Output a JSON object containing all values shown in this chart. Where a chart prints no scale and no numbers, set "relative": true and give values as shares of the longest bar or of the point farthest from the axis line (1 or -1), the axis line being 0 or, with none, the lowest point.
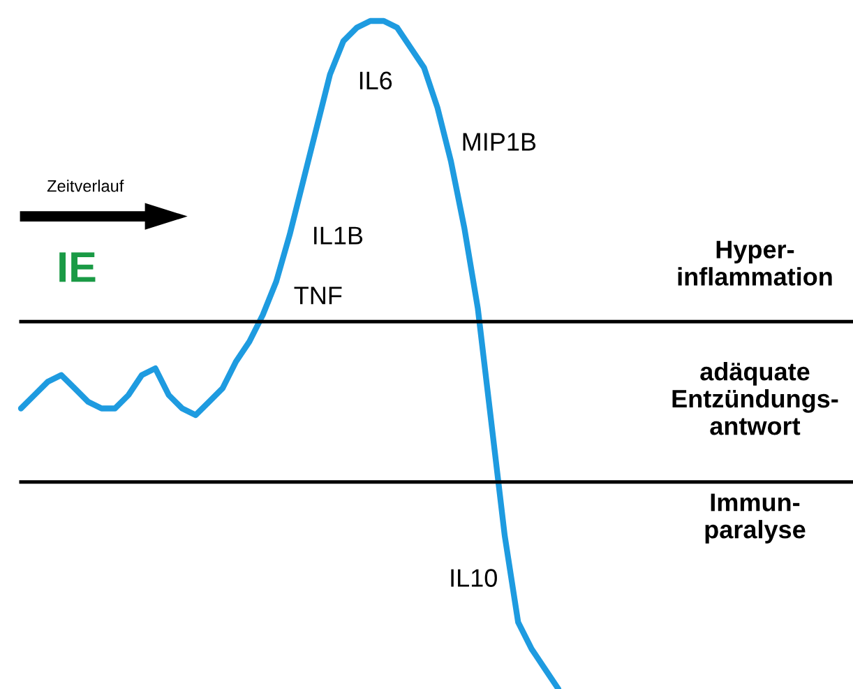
{
  "chart_data": {
    "type": "line",
    "relative": true,
    "categories": [
      null,
      null,
      null,
      null,
      null,
      null,
      null,
      null,
      null,
      null,
      null,
      null,
      null,
      null,
      null,
      null,
      null,
      null,
      null,
      null,
      null,
      null,
      null,
      null,
      null,
      null,
      null,
      null,
      null,
      null,
      null,
      null,
      null,
      null,
      null,
      null,
      null,
      null,
      null,
      null,
      null
    ],
    "series": [
      {
        "color": "#1e9be0",
        "values": [
          0.42,
          0.44,
          0.46,
          0.47,
          0.45,
          0.43,
          0.42,
          0.42,
          0.44,
          0.47,
          0.48,
          0.44,
          0.42,
          0.41,
          0.43,
          0.45,
          0.49,
          0.52,
          0.56,
          0.61,
          0.68,
          0.76,
          0.84,
          0.92,
          0.97,
          0.99,
          1,
          1,
          0.99,
          0.96,
          0.93,
          0.87,
          0.79,
          0.69,
          0.57,
          0.4,
          0.23,
          0.1,
          0.06,
          0.03,
          0
        ]
      }
    ],
    "ref_lines": [
      {
        "axis": "y",
        "value": 0.55,
        "label": "Hyper-\ninflammation",
        "color": "#000000"
      },
      {
        "axis": "y",
        "value": 0.31,
        "label": "adäquate\nEntzündungs-\nantwort",
        "color": "#000000"
      }
    ],
    "annotations": [
      "Zeitverlauf",
      "IE",
      "IL6",
      "MIP1B",
      "IL1B",
      "TNF",
      "IL10",
      "Immun-\nparalyse"
    ],
    "marker": "none",
    "line_style": "solid"
  }
}
